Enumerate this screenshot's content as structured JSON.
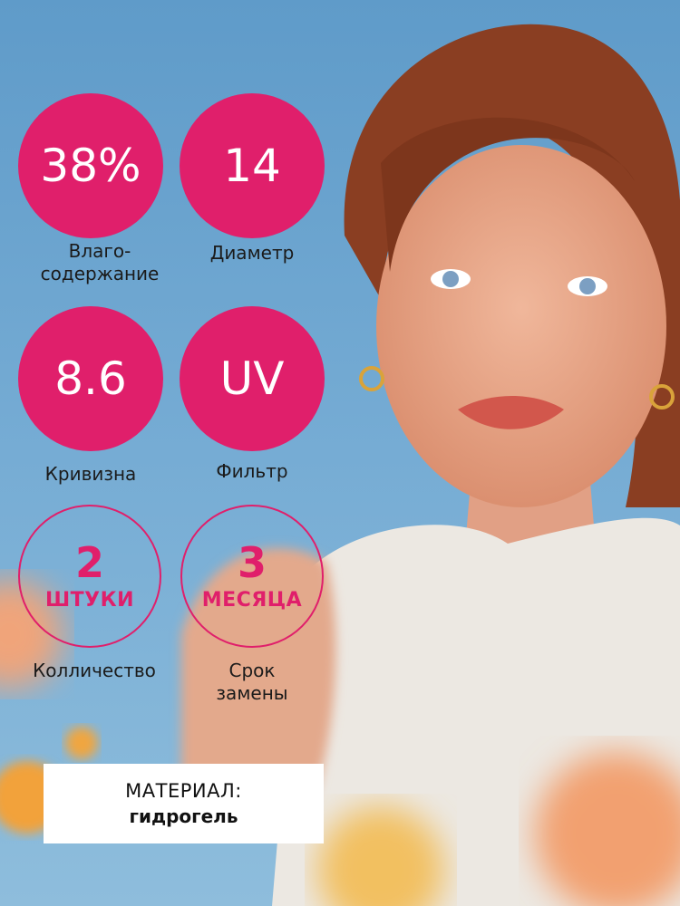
{
  "colors": {
    "accent": "#e01f6b",
    "background": "#6fa6cf"
  },
  "specs": [
    {
      "value": "38%",
      "label_lines": [
        "Влаго-",
        "содержание"
      ]
    },
    {
      "value": "14",
      "label_lines": [
        "Диаметр"
      ]
    },
    {
      "value": "8.6",
      "label_lines": [
        "Кривизна"
      ]
    },
    {
      "value": "UV",
      "label_lines": [
        "Фильтр"
      ]
    }
  ],
  "counts": [
    {
      "number": "2",
      "unit": "ШТУКИ",
      "label_lines": [
        "Колличество"
      ]
    },
    {
      "number": "3",
      "unit": "МЕСЯЦА",
      "label_lines": [
        "Срок",
        "замены"
      ]
    }
  ],
  "material": {
    "title": "МАТЕРИАЛ:",
    "value": "гидрогель"
  }
}
